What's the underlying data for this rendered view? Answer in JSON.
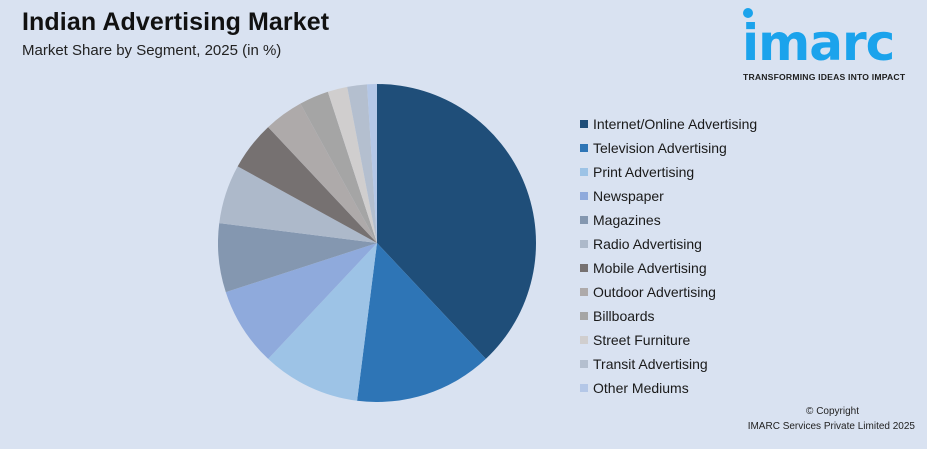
{
  "header": {
    "title": "Indian Advertising Market",
    "subtitle": "Market Share by Segment, 2025 (in %)"
  },
  "logo": {
    "wordmark": "imarc",
    "tagline": "TRANSFORMING IDEAS INTO IMPACT",
    "color": "#1ba3ec"
  },
  "footer": {
    "copyright": "© Copyright",
    "company": "IMARC Services Private Limited 2025"
  },
  "chart_data": {
    "type": "pie",
    "title": "Indian Advertising Market",
    "subtitle": "Market Share by Segment, 2025 (in %)",
    "legend_position": "right",
    "start_angle": 0,
    "direction": "clockwise",
    "categories": [
      "Internet/Online Advertising",
      "Television Advertising",
      "Print Advertising",
      "Newspaper",
      "Magazines",
      "Radio Advertising",
      "Mobile Advertising",
      "Outdoor Advertising",
      "Billboards",
      "Street Furniture",
      "Transit Advertising",
      "Other Mediums"
    ],
    "values": [
      38,
      14,
      10,
      8,
      7,
      6,
      5,
      4,
      3,
      2,
      2,
      1
    ],
    "colors": [
      "#1f4e79",
      "#2e75b6",
      "#9dc3e6",
      "#8faadc",
      "#8497b0",
      "#adb9ca",
      "#767171",
      "#aeaaaa",
      "#a5a5a5",
      "#d0cece",
      "#b4bfcf",
      "#b4c7e7"
    ]
  }
}
